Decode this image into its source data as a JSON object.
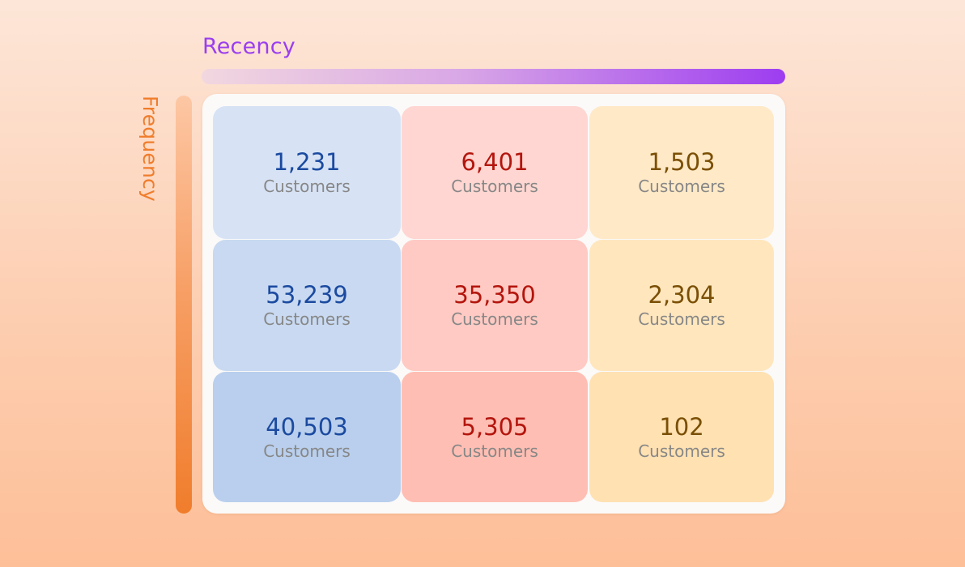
{
  "axes": {
    "recency_label": "Recency",
    "frequency_label": "Frequency"
  },
  "colors": {
    "recency_accent": "#9a3ef0",
    "frequency_accent": "#f07d2c"
  },
  "grid": {
    "rows": [
      [
        {
          "count": "1,231",
          "unit": "Customers",
          "fill": "#d7e3f5"
        },
        {
          "count": "6,401",
          "unit": "Customers",
          "fill": "#ffd6d1"
        },
        {
          "count": "1,503",
          "unit": "Customers",
          "fill": "#ffe9c7"
        }
      ],
      [
        {
          "count": "53,239",
          "unit": "Customers",
          "fill": "#c8d9f1"
        },
        {
          "count": "35,350",
          "unit": "Customers",
          "fill": "#ffcac3"
        },
        {
          "count": "2,304",
          "unit": "Customers",
          "fill": "#ffe6bd"
        }
      ],
      [
        {
          "count": "40,503",
          "unit": "Customers",
          "fill": "#b9cfed"
        },
        {
          "count": "5,305",
          "unit": "Customers",
          "fill": "#ffbeb3"
        },
        {
          "count": "102",
          "unit": "Customers",
          "fill": "#ffe1b2"
        }
      ]
    ]
  }
}
